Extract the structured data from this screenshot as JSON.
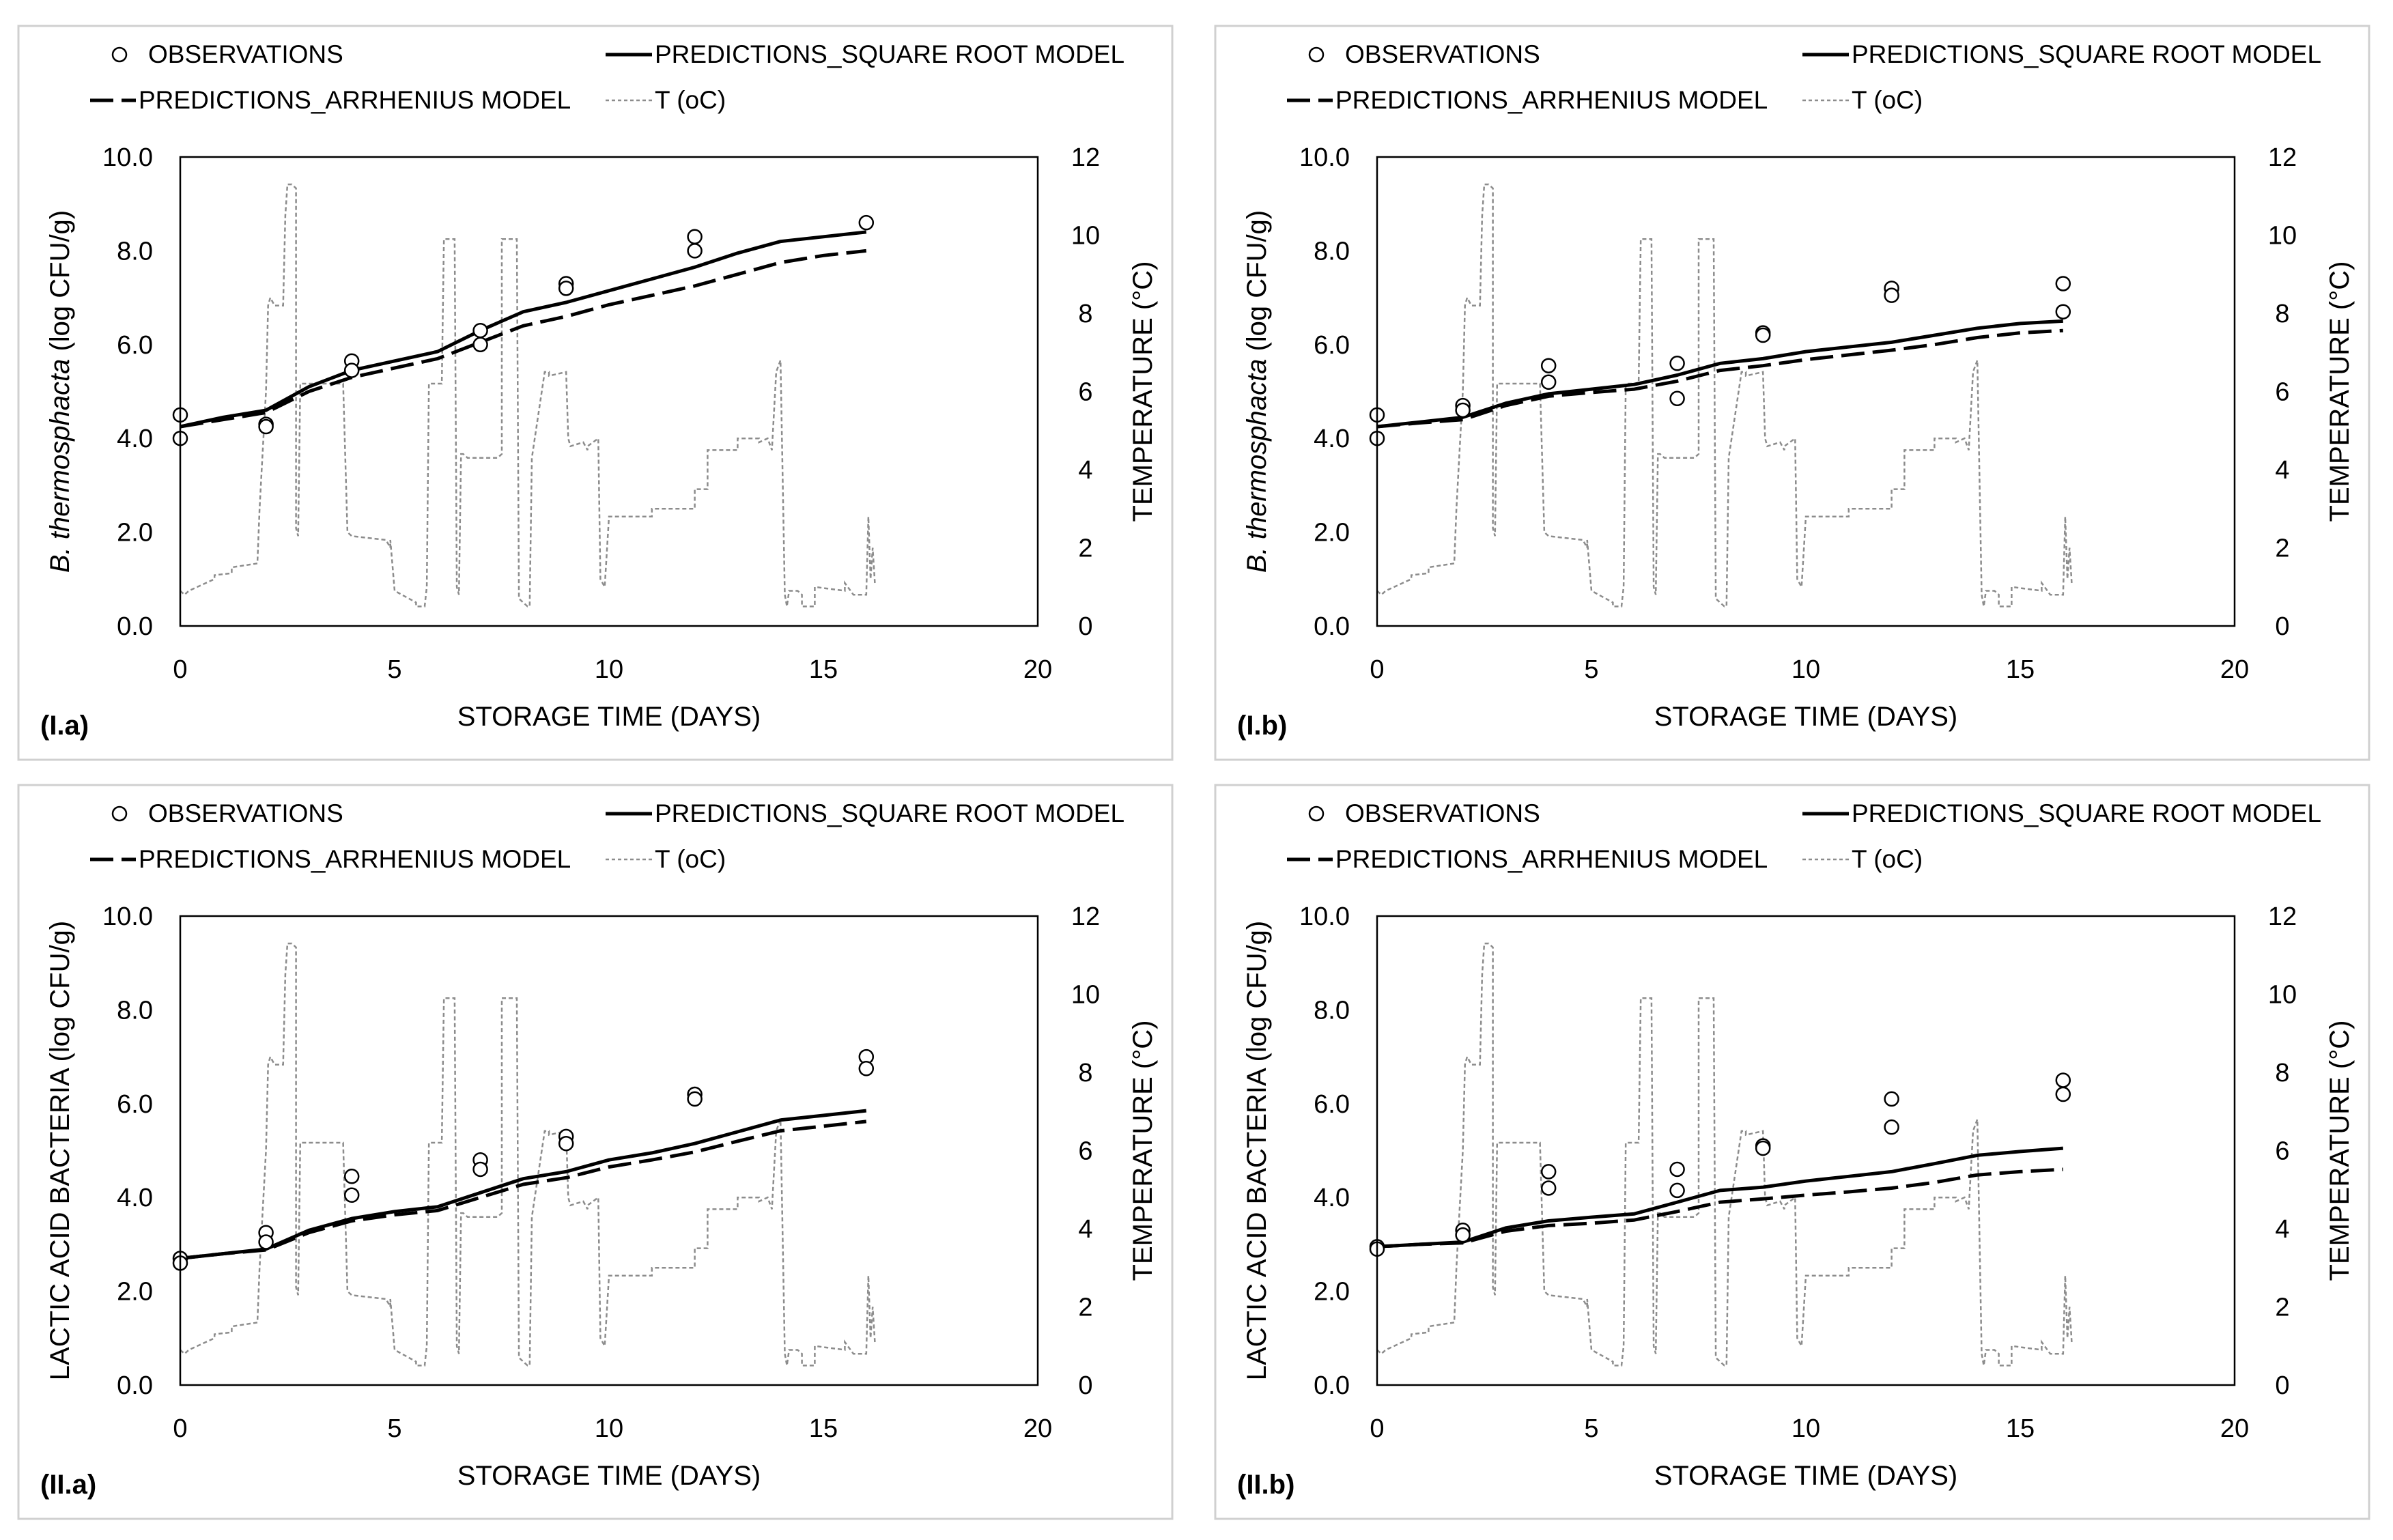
{
  "legend": {
    "observations": "OBSERVATIONS",
    "square_root": "PREDICTIONS_SQUARE ROOT MODEL",
    "arrhenius": "PREDICTIONS_ARRHENIUS MODEL",
    "temperature": "T (oC)"
  },
  "colors": {
    "frame": "#d0d0d0",
    "prediction": "#000000",
    "temperature": "#8c8c8c",
    "marker_fill": "#ffffff"
  },
  "temperature_profile": {
    "t": [
      0,
      0.1,
      0.2,
      0.4,
      0.6,
      0.8,
      0.8,
      1.2,
      1.2,
      1.8,
      1.85,
      1.9,
      2.0,
      2.05,
      2.1,
      2.2,
      2.4,
      2.45,
      2.5,
      2.6,
      2.7,
      2.7,
      2.75,
      2.8,
      3.0,
      3.8,
      3.9,
      4.0,
      4.0,
      4.8,
      4.9,
      4.9,
      5.0,
      5.5,
      5.5,
      5.7,
      5.75,
      5.8,
      6.1,
      6.15,
      6.2,
      6.4,
      6.45,
      6.5,
      6.55,
      6.6,
      6.7,
      6.8,
      7.4,
      7.5,
      7.5,
      7.8,
      7.85,
      7.9,
      8.1,
      8.15,
      8.2,
      8.5,
      8.6,
      8.6,
      9.0,
      9.05,
      9.1,
      9.4,
      9.5,
      9.5,
      9.75,
      9.8,
      9.9,
      10.0,
      10.0,
      11.0,
      11.0,
      12.0,
      12.0,
      12.3,
      12.3,
      12.4,
      12.4,
      13.0,
      13.0,
      13.5,
      13.5,
      13.7,
      13.8,
      13.9,
      14.0,
      14.1,
      14.15,
      14.2,
      14.4,
      14.5,
      14.5,
      14.8,
      14.8,
      15.5,
      15.5,
      15.7,
      15.7,
      16.0,
      16.05,
      16.1,
      16.15,
      16.2
    ],
    "temp": [
      0.9,
      0.8,
      0.9,
      1.0,
      1.1,
      1.2,
      1.3,
      1.35,
      1.5,
      1.6,
      3.0,
      4.0,
      6.0,
      8.2,
      8.4,
      8.2,
      8.2,
      10.5,
      11.3,
      11.3,
      11.2,
      2.5,
      2.3,
      6.2,
      6.2,
      6.2,
      2.4,
      2.3,
      2.3,
      2.2,
      2.0,
      2.2,
      0.9,
      0.6,
      0.5,
      0.5,
      1.0,
      6.2,
      6.2,
      9.9,
      9.9,
      9.9,
      1.0,
      0.8,
      4.4,
      4.4,
      4.3,
      4.3,
      4.3,
      4.4,
      9.9,
      9.9,
      9.9,
      0.7,
      0.5,
      0.5,
      4.3,
      6.5,
      6.5,
      6.4,
      6.5,
      4.8,
      4.6,
      4.7,
      4.5,
      4.6,
      4.8,
      1.2,
      1.0,
      2.8,
      2.8,
      2.8,
      3.0,
      3.0,
      3.5,
      3.5,
      4.5,
      4.5,
      4.5,
      4.5,
      4.8,
      4.8,
      4.7,
      4.8,
      4.5,
      6.5,
      6.8,
      0.8,
      0.5,
      0.9,
      0.9,
      0.8,
      0.5,
      0.5,
      1.0,
      0.9,
      1.1,
      0.8,
      0.8,
      0.8,
      2.8,
      1.2,
      2.0,
      1.1
    ]
  },
  "panels": [
    {
      "label": "(I.a)",
      "chart_data": {
        "type": "scatter",
        "xlabel": "STORAGE TIME (DAYS)",
        "ylabel_italic": "B. thermosphacta",
        "ylabel_rest": " (log CFU/g)",
        "y2label": "TEMPERATURE (°C)",
        "xlim": [
          0,
          20
        ],
        "ylim": [
          0,
          10
        ],
        "y2lim": [
          0,
          12
        ],
        "xticks": [
          "0",
          "5",
          "10",
          "15",
          "20"
        ],
        "yticks": [
          "0.0",
          "2.0",
          "4.0",
          "6.0",
          "8.0",
          "10.0"
        ],
        "y2ticks": [
          "0",
          "2",
          "4",
          "6",
          "8",
          "10",
          "12"
        ],
        "observations": {
          "x": [
            0,
            0,
            2,
            2,
            4,
            4,
            7,
            7,
            9,
            9,
            12,
            12,
            16
          ],
          "y": [
            4.5,
            4.0,
            4.3,
            4.25,
            5.65,
            5.45,
            6.3,
            6.0,
            7.3,
            7.2,
            8.3,
            8.0,
            8.6
          ]
        },
        "series": [
          {
            "name": "PREDICTIONS_SQUARE ROOT MODEL",
            "x": [
              0,
              1,
              2,
              3,
              4,
              5,
              6,
              7,
              8,
              9,
              10,
              11,
              12,
              13,
              14,
              15,
              16
            ],
            "y": [
              4.25,
              4.45,
              4.6,
              5.1,
              5.45,
              5.65,
              5.85,
              6.3,
              6.7,
              6.9,
              7.15,
              7.4,
              7.65,
              7.95,
              8.2,
              8.3,
              8.4
            ]
          },
          {
            "name": "PREDICTIONS_ARRHENIUS MODEL",
            "x": [
              0,
              1,
              2,
              3,
              4,
              5,
              6,
              7,
              8,
              9,
              10,
              11,
              12,
              13,
              14,
              15,
              16
            ],
            "y": [
              4.25,
              4.4,
              4.55,
              5.0,
              5.3,
              5.5,
              5.7,
              6.05,
              6.4,
              6.6,
              6.85,
              7.05,
              7.25,
              7.5,
              7.75,
              7.9,
              8.0
            ]
          }
        ]
      }
    },
    {
      "label": "(I.b)",
      "chart_data": {
        "type": "scatter",
        "xlabel": "STORAGE TIME (DAYS)",
        "ylabel_italic": "B. thermosphacta",
        "ylabel_rest": " (log CFU/g)",
        "y2label": "TEMPERATURE (°C)",
        "xlim": [
          0,
          20
        ],
        "ylim": [
          0,
          10
        ],
        "y2lim": [
          0,
          12
        ],
        "xticks": [
          "0",
          "5",
          "10",
          "15",
          "20"
        ],
        "yticks": [
          "0.0",
          "2.0",
          "4.0",
          "6.0",
          "8.0",
          "10.0"
        ],
        "y2ticks": [
          "0",
          "2",
          "4",
          "6",
          "8",
          "10",
          "12"
        ],
        "observations": {
          "x": [
            0,
            0,
            2,
            2,
            4,
            4,
            7,
            7,
            9,
            9,
            12,
            12,
            16,
            16
          ],
          "y": [
            4.5,
            4.0,
            4.7,
            4.6,
            5.55,
            5.2,
            5.6,
            4.85,
            6.25,
            6.2,
            7.2,
            7.05,
            7.3,
            6.7
          ]
        },
        "series": [
          {
            "name": "PREDICTIONS_SQUARE ROOT MODEL",
            "x": [
              0,
              1,
              2,
              3,
              4,
              5,
              6,
              7,
              8,
              9,
              10,
              11,
              12,
              13,
              14,
              15,
              16
            ],
            "y": [
              4.25,
              4.35,
              4.45,
              4.75,
              4.95,
              5.05,
              5.15,
              5.35,
              5.6,
              5.7,
              5.85,
              5.95,
              6.05,
              6.2,
              6.35,
              6.45,
              6.5
            ]
          },
          {
            "name": "PREDICTIONS_ARRHENIUS MODEL",
            "x": [
              0,
              1,
              2,
              3,
              4,
              5,
              6,
              7,
              8,
              9,
              10,
              11,
              12,
              13,
              14,
              15,
              16
            ],
            "y": [
              4.25,
              4.33,
              4.4,
              4.7,
              4.9,
              4.98,
              5.05,
              5.22,
              5.45,
              5.55,
              5.68,
              5.78,
              5.88,
              6.0,
              6.15,
              6.25,
              6.3
            ]
          }
        ]
      }
    },
    {
      "label": "(II.a)",
      "chart_data": {
        "type": "scatter",
        "xlabel": "STORAGE TIME (DAYS)",
        "ylabel_italic": "",
        "ylabel_rest": "LACTIC ACID BACTERIA (log CFU/g)",
        "y2label": "TEMPERATURE (°C)",
        "xlim": [
          0,
          20
        ],
        "ylim": [
          0,
          10
        ],
        "y2lim": [
          0,
          12
        ],
        "xticks": [
          "0",
          "5",
          "10",
          "15",
          "20"
        ],
        "yticks": [
          "0.0",
          "2.0",
          "4.0",
          "6.0",
          "8.0",
          "10.0"
        ],
        "y2ticks": [
          "0",
          "2",
          "4",
          "6",
          "8",
          "10",
          "12"
        ],
        "observations": {
          "x": [
            0,
            0,
            2,
            2,
            4,
            4,
            7,
            7,
            9,
            9,
            12,
            12,
            16,
            16
          ],
          "y": [
            2.7,
            2.6,
            3.25,
            3.05,
            4.45,
            4.05,
            4.8,
            4.6,
            5.3,
            5.15,
            6.2,
            6.1,
            7.0,
            6.75
          ]
        },
        "series": [
          {
            "name": "PREDICTIONS_SQUARE ROOT MODEL",
            "x": [
              0,
              1,
              2,
              3,
              4,
              5,
              6,
              7,
              8,
              9,
              10,
              11,
              12,
              13,
              14,
              15,
              16
            ],
            "y": [
              2.7,
              2.8,
              2.9,
              3.3,
              3.55,
              3.7,
              3.8,
              4.1,
              4.4,
              4.55,
              4.8,
              4.95,
              5.15,
              5.4,
              5.65,
              5.75,
              5.85
            ]
          },
          {
            "name": "PREDICTIONS_ARRHENIUS MODEL",
            "x": [
              0,
              1,
              2,
              3,
              4,
              5,
              6,
              7,
              8,
              9,
              10,
              11,
              12,
              13,
              14,
              15,
              16
            ],
            "y": [
              2.7,
              2.8,
              2.88,
              3.25,
              3.5,
              3.63,
              3.72,
              4.0,
              4.28,
              4.42,
              4.65,
              4.8,
              4.97,
              5.2,
              5.42,
              5.52,
              5.62
            ]
          }
        ]
      }
    },
    {
      "label": "(II.b)",
      "chart_data": {
        "type": "scatter",
        "xlabel": "STORAGE TIME (DAYS)",
        "ylabel_italic": "",
        "ylabel_rest": "LACTIC ACID BACTERIA (log CFU/g)",
        "y2label": "TEMPERATURE (°C)",
        "xlim": [
          0,
          20
        ],
        "ylim": [
          0,
          10
        ],
        "y2lim": [
          0,
          12
        ],
        "xticks": [
          "0",
          "5",
          "10",
          "15",
          "20"
        ],
        "yticks": [
          "0.0",
          "2.0",
          "4.0",
          "6.0",
          "8.0",
          "10.0"
        ],
        "y2ticks": [
          "0",
          "2",
          "4",
          "6",
          "8",
          "10",
          "12"
        ],
        "observations": {
          "x": [
            0,
            0,
            2,
            2,
            4,
            4,
            7,
            7,
            9,
            9,
            12,
            12,
            16,
            16
          ],
          "y": [
            2.95,
            2.9,
            3.3,
            3.2,
            4.55,
            4.2,
            4.6,
            4.15,
            5.1,
            5.05,
            6.1,
            5.5,
            6.5,
            6.2
          ]
        },
        "series": [
          {
            "name": "PREDICTIONS_SQUARE ROOT MODEL",
            "x": [
              0,
              1,
              2,
              3,
              4,
              5,
              6,
              7,
              8,
              9,
              10,
              11,
              12,
              13,
              14,
              15,
              16
            ],
            "y": [
              2.95,
              3.0,
              3.05,
              3.35,
              3.5,
              3.58,
              3.65,
              3.9,
              4.15,
              4.22,
              4.35,
              4.45,
              4.55,
              4.72,
              4.9,
              4.98,
              5.05
            ]
          },
          {
            "name": "PREDICTIONS_ARRHENIUS MODEL",
            "x": [
              0,
              1,
              2,
              3,
              4,
              5,
              6,
              7,
              8,
              9,
              10,
              11,
              12,
              13,
              14,
              15,
              16
            ],
            "y": [
              2.95,
              3.0,
              3.03,
              3.28,
              3.4,
              3.45,
              3.52,
              3.7,
              3.9,
              3.97,
              4.05,
              4.12,
              4.2,
              4.32,
              4.48,
              4.55,
              4.6
            ]
          }
        ]
      }
    }
  ]
}
